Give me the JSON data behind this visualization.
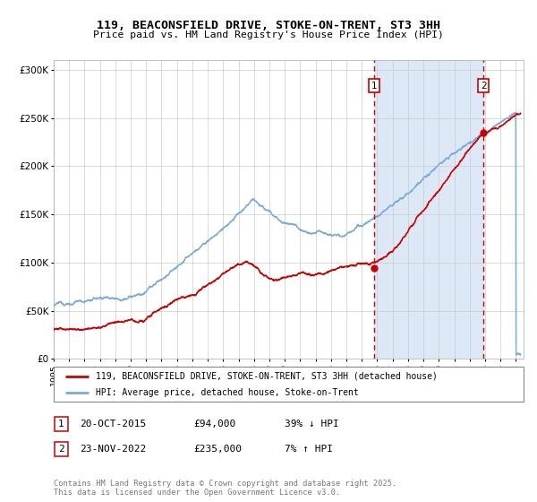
{
  "title": "119, BEACONSFIELD DRIVE, STOKE-ON-TRENT, ST3 3HH",
  "subtitle": "Price paid vs. HM Land Registry's House Price Index (HPI)",
  "background_color": "#ffffff",
  "highlight_bg_color": "#dce8f5",
  "grid_color": "#cccccc",
  "red_line_color": "#cc0000",
  "blue_line_color": "#7aaadd",
  "dashed_line_color": "#cc0000",
  "ylim": [
    0,
    310000
  ],
  "yticks": [
    0,
    50000,
    100000,
    150000,
    200000,
    250000,
    300000
  ],
  "ytick_labels": [
    "£0",
    "£50K",
    "£100K",
    "£150K",
    "£200K",
    "£250K",
    "£300K"
  ],
  "year_start": 1995,
  "year_end": 2025,
  "sale1_year": 2015.8,
  "sale1_price": 94000,
  "sale1_label": "1",
  "sale2_year": 2022.9,
  "sale2_price": 235000,
  "sale2_label": "2",
  "legend_label_red": "119, BEACONSFIELD DRIVE, STOKE-ON-TRENT, ST3 3HH (detached house)",
  "legend_label_blue": "HPI: Average price, detached house, Stoke-on-Trent",
  "footer_text": "Contains HM Land Registry data © Crown copyright and database right 2025.\nThis data is licensed under the Open Government Licence v3.0.",
  "table_row1": [
    "1",
    "20-OCT-2015",
    "£94,000",
    "39% ↓ HPI"
  ],
  "table_row2": [
    "2",
    "23-NOV-2022",
    "£235,000",
    "7% ↑ HPI"
  ]
}
